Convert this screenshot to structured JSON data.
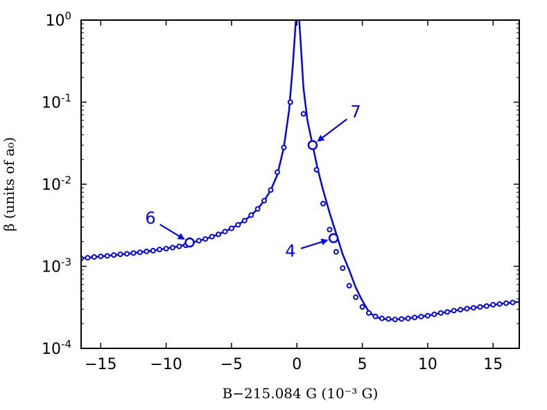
{
  "chart_data": {
    "type": "line",
    "xlabel": "B−215.084 G (10⁻³ G)",
    "ylabel": "β (units of a₀)",
    "xlim": [
      -16.5,
      17
    ],
    "ylim": [
      0.0001,
      1
    ],
    "yscale": "log",
    "grid": false,
    "x_ticks": [
      -15,
      -10,
      -5,
      0,
      5,
      10,
      15
    ],
    "x_tick_labels": [
      "−15",
      "−10",
      "−5",
      "0",
      "5",
      "10",
      "15"
    ],
    "y_ticks": [
      {
        "value": 0.0001,
        "base": "10",
        "exp": "-4"
      },
      {
        "value": 0.001,
        "base": "10",
        "exp": "-3"
      },
      {
        "value": 0.01,
        "base": "10",
        "exp": "-2"
      },
      {
        "value": 0.1,
        "base": "10",
        "exp": "-1"
      },
      {
        "value": 1,
        "base": "10",
        "exp": "0"
      }
    ],
    "line_color": "#0000ff",
    "curve": {
      "x": [
        -16.5,
        -15,
        -13,
        -11,
        -9,
        -8,
        -7,
        -6,
        -5,
        -4,
        -3.5,
        -3,
        -2.5,
        -2,
        -1.5,
        -1,
        -0.6,
        -0.3,
        -0.1,
        0,
        0.1,
        0.3,
        0.5,
        0.8,
        1.2,
        1.6,
        2.0,
        2.5,
        3.0,
        3.5,
        4.0,
        4.5,
        5.0,
        5.5,
        6.0,
        6.5,
        7.0,
        7.5,
        8.0,
        9.0,
        10,
        11,
        12,
        13,
        14,
        15,
        16,
        17
      ],
      "y": [
        0.00125,
        0.00132,
        0.00142,
        0.00155,
        0.00175,
        0.00195,
        0.00215,
        0.00245,
        0.0029,
        0.0036,
        0.0042,
        0.005,
        0.0063,
        0.0085,
        0.013,
        0.028,
        0.08,
        0.3,
        0.9,
        1.5,
        1.5,
        0.5,
        0.15,
        0.06,
        0.03,
        0.015,
        0.0085,
        0.0045,
        0.0025,
        0.0014,
        0.0009,
        0.00055,
        0.00038,
        0.00028,
        0.00024,
        0.00023,
        0.000225,
        0.000225,
        0.000228,
        0.000238,
        0.00025,
        0.00027,
        0.000288,
        0.000305,
        0.00032,
        0.00034,
        0.000355,
        0.00037
      ]
    },
    "series": [
      {
        "x": [
          -16.5,
          -16,
          -15.5,
          -15,
          -14.5,
          -14,
          -13.5,
          -13,
          -12.5,
          -12,
          -11.5,
          -11,
          -10.5,
          -10,
          -9.5,
          -9,
          -8.5,
          -7.5,
          -7,
          -6.5,
          -6,
          -5.5,
          -5,
          -4.5,
          -4,
          -3.5,
          -3,
          -2.5,
          -2,
          -1.5,
          -1,
          -0.5,
          0.5,
          1.5,
          2.0,
          2.5,
          3.0,
          3.5,
          4.0,
          4.5,
          5.0,
          5.5,
          6.0,
          6.5,
          7.0,
          7.5,
          8.0,
          8.5,
          9.0,
          9.5,
          10,
          10.5,
          11,
          11.5,
          12,
          12.5,
          13,
          13.5,
          14,
          14.5,
          15,
          15.5,
          16,
          16.5
        ],
        "y": [
          0.00125,
          0.00127,
          0.0013,
          0.00132,
          0.00134,
          0.00137,
          0.0014,
          0.00142,
          0.00145,
          0.00148,
          0.00152,
          0.00155,
          0.0016,
          0.00164,
          0.00169,
          0.00175,
          0.0018,
          0.00205,
          0.00215,
          0.0023,
          0.00245,
          0.00265,
          0.0029,
          0.0032,
          0.0036,
          0.0042,
          0.005,
          0.0063,
          0.0085,
          0.014,
          0.028,
          0.1,
          0.072,
          0.015,
          0.0058,
          0.0028,
          0.0015,
          0.00095,
          0.00058,
          0.00042,
          0.00032,
          0.00027,
          0.000245,
          0.000232,
          0.000228,
          0.000225,
          0.000228,
          0.000232,
          0.000238,
          0.000244,
          0.00025,
          0.00026,
          0.00027,
          0.000278,
          0.000288,
          0.000296,
          0.000305,
          0.000312,
          0.00032,
          0.000328,
          0.00034,
          0.000347,
          0.000355,
          0.000362
        ]
      }
    ],
    "highlight_points": [
      {
        "label": "6",
        "x": -8.2,
        "y": 0.00195
      },
      {
        "label": "7",
        "x": 1.2,
        "y": 0.03
      },
      {
        "label": "4",
        "x": 2.8,
        "y": 0.0022
      }
    ],
    "annotations": [
      {
        "text": "6",
        "x": -11.2,
        "y": 0.0038
      },
      {
        "text": "7",
        "x": 4.5,
        "y": 0.075
      },
      {
        "text": "4",
        "x": -0.5,
        "y": 0.0015
      }
    ]
  }
}
